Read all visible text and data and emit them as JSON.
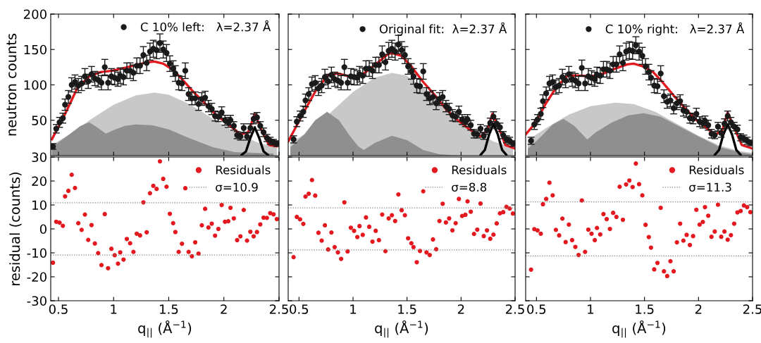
{
  "chart_data": [
    {
      "type": "scatter",
      "ylabel": "neutron counts",
      "xlim": [
        0.43,
        2.5
      ],
      "xticks": [
        0.5,
        1,
        1.5,
        2,
        2.5
      ],
      "ylim": [
        0,
        200
      ],
      "yticks": [
        50,
        100,
        150,
        200
      ],
      "tick_labels": "y",
      "legend": "top right",
      "x": [
        0.45,
        0.48,
        0.51,
        0.54,
        0.56,
        0.59,
        0.62,
        0.65,
        0.68,
        0.71,
        0.74,
        0.77,
        0.8,
        0.83,
        0.86,
        0.89,
        0.92,
        0.95,
        0.98,
        1.01,
        1.04,
        1.06,
        1.09,
        1.12,
        1.15,
        1.18,
        1.21,
        1.24,
        1.27,
        1.3,
        1.33,
        1.36,
        1.39,
        1.42,
        1.45,
        1.48,
        1.51,
        1.54,
        1.56,
        1.59,
        1.62,
        1.65,
        1.68,
        1.71,
        1.74,
        1.77,
        1.8,
        1.83,
        1.86,
        1.89,
        1.92,
        1.95,
        1.98,
        2.01,
        2.04,
        2.06,
        2.09,
        2.12,
        2.15,
        2.18,
        2.21,
        2.24,
        2.27,
        2.3,
        2.33,
        2.36,
        2.39,
        2.42,
        2.45,
        2.48
      ],
      "series": [
        {
          "type": "area",
          "color": "#c8c8c8",
          "x": [
            0.44,
            0.6,
            0.8,
            1.0,
            1.2,
            1.37,
            1.5,
            1.7,
            1.9,
            2.1,
            2.3,
            2.48
          ],
          "values": [
            15,
            30,
            52,
            72,
            85,
            89,
            86,
            72,
            52,
            33,
            19,
            11
          ]
        },
        {
          "type": "area",
          "color": "#8f8f8f",
          "x": [
            0.44,
            0.6,
            0.7,
            0.78,
            0.85,
            0.93,
            1.0,
            1.1,
            1.2,
            1.35,
            1.5,
            1.7,
            1.9,
            2.1,
            2.45
          ],
          "values": [
            12,
            30,
            42,
            47,
            40,
            31,
            36,
            42,
            44,
            43,
            37,
            24,
            12,
            5,
            3
          ]
        },
        {
          "type": "line",
          "color": "#000000",
          "x": [
            2.16,
            2.2,
            2.24,
            2.28,
            2.32,
            2.36,
            2.4
          ],
          "values": [
            1,
            6,
            25,
            40,
            25,
            6,
            1
          ]
        },
        {
          "type": "line",
          "color": "#e3191f",
          "x": [
            0.44,
            0.56,
            0.67,
            0.78,
            0.88,
            0.99,
            1.1,
            1.2,
            1.31,
            1.37,
            1.45,
            1.54,
            1.62,
            1.73,
            1.84,
            1.94,
            2.05,
            2.15,
            2.22,
            2.28,
            2.35,
            2.41,
            2.48
          ],
          "values": [
            23,
            59,
            95,
            112,
            118,
            120,
            124,
            128,
            132,
            133,
            130,
            121,
            108,
            89,
            72,
            56,
            43,
            30,
            33,
            59,
            33,
            15,
            13
          ]
        },
        {
          "type": "scatter",
          "name": "C 10% left:   λ=2.37 Å",
          "color": "#1a1a1a",
          "marker": "circle",
          "values": [
            13,
            38,
            47,
            53,
            72,
            83,
            100,
            104,
            99,
            102,
            112,
            105,
            115,
            109,
            107,
            103,
            125,
            103,
            112,
            110,
            108,
            113,
            111,
            120,
            120,
            117,
            127,
            127,
            142,
            131,
            147,
            151,
            149,
            159,
            150,
            145,
            130,
            123,
            116,
            103,
            102,
            120,
            87,
            81,
            81,
            73,
            80,
            82,
            70,
            66,
            56,
            55,
            61,
            50,
            47,
            50,
            42,
            29,
            27,
            39,
            27,
            39,
            52,
            54,
            42,
            33,
            25,
            21,
            19,
            17
          ],
          "errors": [
            4,
            6,
            7,
            7,
            8,
            9,
            10,
            10,
            10,
            10,
            11,
            10,
            11,
            10,
            10,
            10,
            11,
            10,
            11,
            10,
            10,
            11,
            11,
            11,
            11,
            11,
            11,
            11,
            12,
            11,
            12,
            12,
            12,
            13,
            12,
            12,
            11,
            11,
            11,
            10,
            10,
            11,
            9,
            9,
            9,
            9,
            9,
            9,
            8,
            8,
            7,
            7,
            8,
            7,
            7,
            7,
            6,
            5,
            5,
            6,
            5,
            6,
            7,
            7,
            6,
            6,
            5,
            5,
            4,
            4
          ]
        }
      ]
    },
    {
      "type": "scatter",
      "xlim": [
        0.4,
        2.5
      ],
      "xticks": [
        0.5,
        1,
        1.5,
        2,
        2.5
      ],
      "ylim": [
        0,
        200
      ],
      "yticks": [
        50,
        100,
        150,
        200
      ],
      "tick_labels": false,
      "legend": "top right",
      "x": [
        0.45,
        0.48,
        0.51,
        0.54,
        0.56,
        0.59,
        0.62,
        0.65,
        0.68,
        0.71,
        0.74,
        0.77,
        0.8,
        0.83,
        0.86,
        0.89,
        0.92,
        0.95,
        0.98,
        1.01,
        1.04,
        1.06,
        1.09,
        1.12,
        1.15,
        1.18,
        1.21,
        1.24,
        1.27,
        1.3,
        1.33,
        1.36,
        1.39,
        1.42,
        1.45,
        1.48,
        1.51,
        1.54,
        1.56,
        1.59,
        1.62,
        1.65,
        1.68,
        1.71,
        1.74,
        1.77,
        1.8,
        1.83,
        1.86,
        1.89,
        1.92,
        1.95,
        1.98,
        2.01,
        2.04,
        2.06,
        2.09,
        2.12,
        2.15,
        2.18,
        2.21,
        2.24,
        2.27,
        2.3,
        2.33,
        2.36,
        2.39,
        2.42,
        2.45,
        2.48
      ],
      "series": [
        {
          "type": "area",
          "color": "#c8c8c8",
          "x": [
            0.42,
            0.6,
            0.8,
            1.0,
            1.2,
            1.36,
            1.5,
            1.7,
            1.9,
            2.1,
            2.3,
            2.48
          ],
          "values": [
            18,
            35,
            62,
            90,
            110,
            117,
            113,
            90,
            62,
            38,
            20,
            12
          ]
        },
        {
          "type": "area",
          "color": "#8f8f8f",
          "x": [
            0.42,
            0.55,
            0.65,
            0.76,
            0.87,
            0.97,
            1.05,
            1.1,
            1.2,
            1.36,
            1.5,
            1.65,
            1.8,
            2.0
          ],
          "values": [
            12,
            30,
            50,
            62,
            50,
            28,
            13,
            8,
            18,
            28,
            22,
            8,
            2,
            0
          ]
        },
        {
          "type": "line",
          "color": "#000000",
          "x": [
            2.18,
            2.22,
            2.26,
            2.3,
            2.34,
            2.38,
            2.42
          ],
          "values": [
            1,
            8,
            30,
            45,
            30,
            8,
            1
          ]
        },
        {
          "type": "line",
          "color": "#e3191f",
          "x": [
            0.4,
            0.47,
            0.55,
            0.66,
            0.77,
            0.86,
            0.99,
            1.1,
            1.21,
            1.32,
            1.36,
            1.45,
            1.54,
            1.65,
            1.76,
            1.86,
            1.97,
            2.08,
            2.18,
            2.24,
            2.29,
            2.36,
            2.41,
            2.5
          ],
          "values": [
            20,
            40,
            63,
            93,
            114,
            116,
            111,
            116,
            129,
            143,
            145,
            141,
            126,
            104,
            85,
            66,
            50,
            37,
            27,
            35,
            59,
            35,
            15,
            10
          ]
        },
        {
          "type": "scatter",
          "name": "Original fit:  λ=2.37 Å",
          "color": "#1a1a1a",
          "marker": "circle",
          "values": [
            23,
            48,
            56,
            62,
            78,
            87,
            101,
            103,
            95,
            99,
            111,
            105,
            114,
            108,
            106,
            103,
            125,
            103,
            112,
            111,
            110,
            115,
            113,
            123,
            123,
            120,
            128,
            128,
            143,
            132,
            148,
            151,
            147,
            157,
            149,
            142,
            126,
            119,
            112,
            99,
            98,
            119,
            87,
            81,
            83,
            74,
            80,
            83,
            70,
            66,
            57,
            55,
            62,
            51,
            48,
            51,
            43,
            31,
            30,
            38,
            28,
            36,
            46,
            55,
            45,
            40,
            29,
            23,
            21,
            17
          ],
          "errors": [
            5,
            7,
            7,
            8,
            9,
            9,
            10,
            10,
            10,
            10,
            11,
            10,
            11,
            10,
            10,
            10,
            11,
            10,
            11,
            11,
            10,
            11,
            11,
            11,
            11,
            11,
            11,
            11,
            12,
            11,
            12,
            12,
            12,
            13,
            12,
            12,
            11,
            11,
            11,
            10,
            10,
            11,
            9,
            9,
            9,
            9,
            9,
            9,
            8,
            8,
            8,
            7,
            8,
            7,
            7,
            7,
            7,
            6,
            5,
            6,
            5,
            6,
            7,
            7,
            7,
            6,
            5,
            5,
            5,
            4
          ]
        }
      ]
    },
    {
      "type": "scatter",
      "xlim": [
        0.4,
        2.5
      ],
      "xticks": [
        0.5,
        1,
        1.5,
        2,
        2.5
      ],
      "ylim": [
        0,
        200
      ],
      "yticks": [
        50,
        100,
        150,
        200
      ],
      "tick_labels": false,
      "legend": "top right",
      "x": [
        0.45,
        0.48,
        0.51,
        0.54,
        0.56,
        0.59,
        0.62,
        0.65,
        0.68,
        0.71,
        0.74,
        0.77,
        0.8,
        0.83,
        0.86,
        0.89,
        0.92,
        0.95,
        0.98,
        1.01,
        1.04,
        1.06,
        1.09,
        1.12,
        1.15,
        1.18,
        1.21,
        1.24,
        1.27,
        1.3,
        1.33,
        1.36,
        1.39,
        1.42,
        1.45,
        1.48,
        1.51,
        1.54,
        1.56,
        1.59,
        1.62,
        1.65,
        1.68,
        1.71,
        1.74,
        1.77,
        1.8,
        1.83,
        1.86,
        1.89,
        1.92,
        1.95,
        1.98,
        2.01,
        2.04,
        2.06,
        2.09,
        2.12,
        2.15,
        2.18,
        2.21,
        2.24,
        2.27,
        2.3,
        2.33,
        2.36,
        2.39,
        2.42,
        2.45,
        2.48
      ],
      "series": [
        {
          "type": "area",
          "color": "#c8c8c8",
          "x": [
            0.42,
            0.6,
            0.8,
            1.0,
            1.23,
            1.4,
            1.6,
            1.8,
            2.0,
            2.2,
            2.4,
            2.5
          ],
          "values": [
            22,
            40,
            58,
            70,
            75,
            73,
            62,
            45,
            28,
            14,
            6,
            4
          ]
        },
        {
          "type": "area",
          "color": "#8f8f8f",
          "x": [
            0.42,
            0.55,
            0.65,
            0.75,
            0.85,
            0.97,
            1.05,
            1.2,
            1.35,
            1.49,
            1.65,
            1.8,
            2.0,
            2.2,
            2.4,
            2.5
          ],
          "values": [
            10,
            28,
            44,
            52,
            42,
            23,
            33,
            47,
            57,
            60,
            55,
            43,
            27,
            12,
            4,
            2
          ]
        },
        {
          "type": "line",
          "color": "#000000",
          "x": [
            2.15,
            2.19,
            2.23,
            2.27,
            2.31,
            2.35,
            2.39
          ],
          "values": [
            1,
            8,
            30,
            44,
            30,
            8,
            1
          ]
        },
        {
          "type": "line",
          "color": "#e3191f",
          "x": [
            0.4,
            0.49,
            0.58,
            0.69,
            0.79,
            0.9,
            1.01,
            1.12,
            1.23,
            1.34,
            1.4,
            1.49,
            1.58,
            1.66,
            1.77,
            1.88,
            1.99,
            2.1,
            2.16,
            2.22,
            2.27,
            2.34,
            2.4,
            2.5
          ],
          "values": [
            30,
            46,
            72,
            98,
            113,
            113,
            112,
            116,
            123,
            129,
            130,
            126,
            118,
            105,
            85,
            66,
            49,
            36,
            30,
            36,
            61,
            36,
            15,
            10
          ]
        },
        {
          "type": "scatter",
          "name": "C 10% right:   λ=2.37 Å",
          "color": "#1a1a1a",
          "marker": "circle",
          "values": [
            21,
            44,
            51,
            59,
            77,
            88,
            102,
            104,
            97,
            99,
            111,
            106,
            115,
            108,
            106,
            102,
            124,
            102,
            112,
            110,
            108,
            114,
            113,
            122,
            122,
            120,
            129,
            129,
            143,
            131,
            147,
            149,
            148,
            156,
            147,
            141,
            126,
            118,
            110,
            99,
            98,
            116,
            84,
            76,
            78,
            67,
            74,
            77,
            64,
            62,
            53,
            52,
            59,
            48,
            46,
            49,
            43,
            31,
            29,
            41,
            32,
            45,
            56,
            47,
            41,
            37,
            26,
            24,
            21,
            18
          ],
          "errors": [
            5,
            7,
            7,
            8,
            9,
            9,
            10,
            10,
            10,
            10,
            11,
            10,
            11,
            10,
            10,
            10,
            11,
            10,
            11,
            10,
            10,
            11,
            11,
            11,
            11,
            11,
            11,
            11,
            12,
            11,
            12,
            12,
            12,
            12,
            12,
            12,
            11,
            11,
            10,
            10,
            10,
            11,
            9,
            9,
            9,
            8,
            9,
            9,
            8,
            8,
            7,
            7,
            8,
            7,
            7,
            7,
            7,
            6,
            5,
            6,
            6,
            7,
            7,
            7,
            6,
            6,
            5,
            5,
            5,
            4
          ]
        }
      ]
    },
    {
      "type": "scatter",
      "xlabel": "q$_{||}$ (Å$^{−1}$)",
      "ylabel": "residual (counts)",
      "xlim": [
        0.43,
        2.5
      ],
      "xticks": [
        0.5,
        1,
        1.5,
        2,
        2.5
      ],
      "ylim": [
        -30,
        30
      ],
      "yticks": [
        -30,
        -20,
        -10,
        0,
        10,
        20,
        30
      ],
      "marker": "circle",
      "legend": "top right",
      "x": [
        0.45,
        0.48,
        0.51,
        0.54,
        0.56,
        0.59,
        0.62,
        0.65,
        0.68,
        0.71,
        0.74,
        0.77,
        0.8,
        0.83,
        0.86,
        0.89,
        0.92,
        0.95,
        0.98,
        1.01,
        1.04,
        1.06,
        1.09,
        1.12,
        1.15,
        1.18,
        1.21,
        1.24,
        1.27,
        1.3,
        1.33,
        1.36,
        1.39,
        1.42,
        1.45,
        1.48,
        1.51,
        1.54,
        1.56,
        1.59,
        1.62,
        1.65,
        1.68,
        1.71,
        1.74,
        1.77,
        1.8,
        1.83,
        1.86,
        1.89,
        1.92,
        1.95,
        1.98,
        2.01,
        2.04,
        2.06,
        2.09,
        2.12,
        2.15,
        2.18,
        2.21,
        2.24,
        2.27,
        2.3,
        2.33,
        2.36,
        2.39,
        2.42,
        2.45,
        2.48
      ],
      "ref_lines": [
        {
          "axis": "y",
          "value": 10.9,
          "label": "σ=10.9",
          "color": "#808080",
          "line_style": "dotted"
        },
        {
          "axis": "y",
          "value": -10.9,
          "color": "#808080",
          "line_style": "dotted"
        }
      ],
      "series": [
        {
          "name": "Residuals",
          "color": "#e3191f",
          "values": [
            -14.1,
            3.0,
            2.6,
            1.3,
            13.6,
            15.9,
            22.6,
            17.1,
            2.4,
            -0.4,
            6.0,
            -4.6,
            1.6,
            -6.1,
            -10.1,
            -15.1,
            6.2,
            -16.4,
            -8.3,
            -11.0,
            -14.5,
            -9.8,
            -12.8,
            -4.2,
            -6.0,
            -9.6,
            -2.0,
            -2.7,
            11.1,
            -1.4,
            14.9,
            18.0,
            16.7,
            28.2,
            20.9,
            17.6,
            6.3,
            2.4,
            -1.3,
            -9.6,
            -6.2,
            17.0,
            -9.6,
            -11.4,
            -5.6,
            -10.3,
            1.5,
            8.4,
            0.6,
            2.2,
            -2.8,
            0.0,
            10.0,
            3.0,
            3.2,
            8.8,
            4.4,
            -4.7,
            -3.1,
            7.9,
            -4.9,
            -1.2,
            -3.1,
            -1.3,
            1.9,
            4.7,
            4.6,
            6.6,
            6.1,
            4.1
          ]
        }
      ]
    },
    {
      "type": "scatter",
      "xlabel": "q$_{||}$ (Å$^{−1}$)",
      "xlim": [
        0.4,
        2.5
      ],
      "xticks": [
        0.5,
        1,
        1.5,
        2,
        2.5
      ],
      "ylim": [
        -30,
        30
      ],
      "yticks": [
        -30,
        -20,
        -10,
        0,
        10,
        20,
        30
      ],
      "tick_labels": "x",
      "marker": "circle",
      "legend": "top right",
      "x": [
        0.45,
        0.48,
        0.51,
        0.54,
        0.56,
        0.59,
        0.62,
        0.65,
        0.68,
        0.71,
        0.74,
        0.77,
        0.8,
        0.83,
        0.86,
        0.89,
        0.92,
        0.95,
        0.98,
        1.01,
        1.04,
        1.06,
        1.09,
        1.12,
        1.15,
        1.18,
        1.21,
        1.24,
        1.27,
        1.3,
        1.33,
        1.36,
        1.39,
        1.42,
        1.45,
        1.48,
        1.51,
        1.54,
        1.56,
        1.59,
        1.62,
        1.65,
        1.68,
        1.71,
        1.74,
        1.77,
        1.8,
        1.83,
        1.86,
        1.89,
        1.92,
        1.95,
        1.98,
        2.01,
        2.04,
        2.06,
        2.09,
        2.12,
        2.15,
        2.18,
        2.21,
        2.24,
        2.27,
        2.3,
        2.33,
        2.36,
        2.39,
        2.42,
        2.45,
        2.48
      ],
      "ref_lines": [
        {
          "axis": "y",
          "value": 8.8,
          "label": "σ=8.8",
          "color": "#808080",
          "line_style": "dotted"
        },
        {
          "axis": "y",
          "value": -8.8,
          "color": "#808080",
          "line_style": "dotted"
        }
      ],
      "series": [
        {
          "name": "Residuals",
          "color": "#e3191f",
          "values": [
            -11.8,
            5.0,
            4.0,
            2.1,
            13.5,
            14.7,
            20.4,
            13.9,
            -1.6,
            -4.9,
            1.5,
            -8.6,
            -1.5,
            -7.6,
            -9.8,
            -12.5,
            11.1,
            -9.4,
            0.5,
            -0.8,
            -3.4,
            1.2,
            -2.5,
            4.8,
            0.9,
            -5.3,
            -0.8,
            -4.7,
            6.0,
            -9.3,
            4.4,
            5.7,
            3.3,
            14.4,
            7.8,
            5.7,
            -3.9,
            -6.0,
            -7.6,
            -13.9,
            -9.2,
            15.7,
            -9.8,
            -10.9,
            -4.4,
            -8.5,
            3.3,
            10.5,
            2.7,
            4.4,
            -0.6,
            2.4,
            12.5,
            5.4,
            5.9,
            11.5,
            7.2,
            -2.1,
            -0.3,
            10.6,
            -3.0,
            -0.6,
            -4.1,
            -2.4,
            2.3,
            6.5,
            7.0,
            9.2,
            8.5,
            6.4
          ]
        }
      ]
    },
    {
      "type": "scatter",
      "xlabel": "q$_{||}$ (Å$^{−1}$)",
      "xlim": [
        0.4,
        2.5
      ],
      "xticks": [
        0.5,
        1,
        1.5,
        2,
        2.5
      ],
      "ylim": [
        -30,
        30
      ],
      "yticks": [
        -30,
        -20,
        -10,
        0,
        10,
        20,
        30
      ],
      "tick_labels": "x",
      "marker": "circle",
      "legend": "top right",
      "x": [
        0.45,
        0.48,
        0.51,
        0.54,
        0.56,
        0.59,
        0.62,
        0.65,
        0.68,
        0.71,
        0.74,
        0.77,
        0.8,
        0.83,
        0.86,
        0.89,
        0.92,
        0.95,
        0.98,
        1.01,
        1.04,
        1.06,
        1.09,
        1.12,
        1.15,
        1.18,
        1.21,
        1.24,
        1.27,
        1.3,
        1.33,
        1.36,
        1.39,
        1.42,
        1.45,
        1.48,
        1.51,
        1.54,
        1.56,
        1.59,
        1.62,
        1.65,
        1.68,
        1.71,
        1.74,
        1.77,
        1.8,
        1.83,
        1.86,
        1.89,
        1.92,
        1.95,
        1.98,
        2.01,
        2.04,
        2.06,
        2.09,
        2.12,
        2.15,
        2.18,
        2.21,
        2.24,
        2.27,
        2.3,
        2.33,
        2.36,
        2.39,
        2.42,
        2.45,
        2.48
      ],
      "ref_lines": [
        {
          "axis": "y",
          "value": 11.3,
          "label": "σ=11.3",
          "color": "#808080",
          "line_style": "dotted"
        },
        {
          "axis": "y",
          "value": -11.3,
          "color": "#808080",
          "line_style": "dotted"
        }
      ],
      "series": [
        {
          "name": "Residuals",
          "color": "#e3191f",
          "values": [
            -17.0,
            -0.1,
            -0.6,
            -2.0,
            10.3,
            12.5,
            19.3,
            14.0,
            -0.4,
            -2.7,
            4.3,
            -5.5,
            1.8,
            -4.7,
            -7.5,
            -10.9,
            11.9,
            -9.6,
            -0.3,
            -2.0,
            -4.7,
            0.4,
            -2.3,
            6.2,
            4.1,
            0.0,
            6.7,
            5.0,
            17.6,
            3.8,
            18.6,
            20.2,
            17.5,
            27.3,
            18.7,
            14.0,
            1.7,
            -3.4,
            -7.8,
            -16.9,
            -14.2,
            8.8,
            -17.7,
            -19.7,
            -13.5,
            -17.7,
            -5.6,
            2.2,
            -4.9,
            -2.5,
            -6.7,
            -3.0,
            8.0,
            1.8,
            2.9,
            9.1,
            5.5,
            -3.3,
            -1.1,
            10.1,
            -3.3,
            -1.1,
            -4.5,
            -2.6,
            2.2,
            6.9,
            7.5,
            9.8,
            9.1,
            7.0
          ]
        }
      ]
    }
  ]
}
